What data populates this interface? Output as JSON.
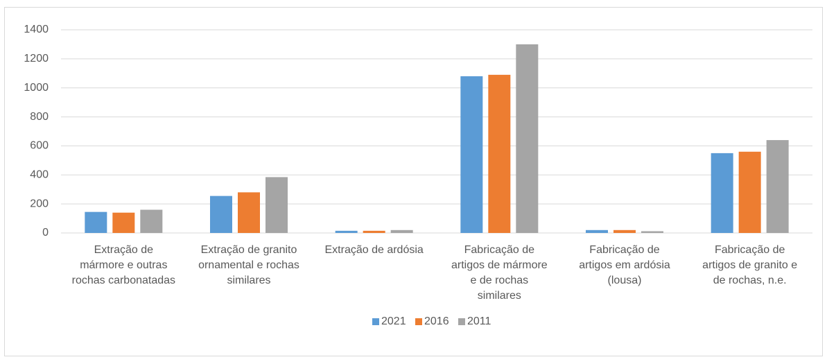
{
  "chart_data": {
    "type": "bar",
    "categories": [
      "Extração de\nmármore e outras\nrochas carbonatadas",
      "Extração de granito\nornamental e rochas\nsimilares",
      "Extração de ardósia",
      "Fabricação de\nartigos de mármore\ne de rochas\nsimilares",
      "Fabricação de\nartigos em ardósia\n(lousa)",
      "Fabricação de\nartigos de granito e\nde rochas, n.e."
    ],
    "series": [
      {
        "name": "2021",
        "color": "#5b9bd5",
        "values": [
          145,
          255,
          15,
          1080,
          20,
          550
        ]
      },
      {
        "name": "2016",
        "color": "#ed7d31",
        "values": [
          140,
          280,
          15,
          1090,
          20,
          560
        ]
      },
      {
        "name": "2011",
        "color": "#a5a5a5",
        "values": [
          160,
          385,
          20,
          1300,
          12,
          640
        ]
      }
    ],
    "ylim": [
      0,
      1400
    ],
    "yticks": [
      0,
      200,
      400,
      600,
      800,
      1000,
      1200,
      1400
    ],
    "grid": true,
    "legend": "bottom"
  }
}
